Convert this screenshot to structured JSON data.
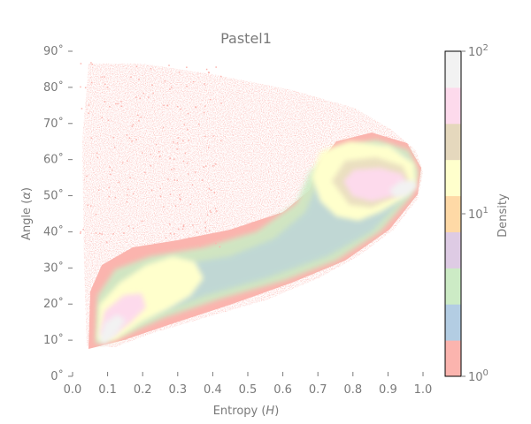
{
  "chart_data": {
    "type": "heatmap",
    "title": "Pastel1",
    "xlabel_main": "Entropy (",
    "xlabel_sym": "H",
    "xlabel_close": ")",
    "ylabel_main": "Angle (",
    "ylabel_sym": "α",
    "ylabel_close": ")",
    "xlim": [
      0.0,
      1.0
    ],
    "ylim": [
      0,
      90
    ],
    "x_ticks": [
      0.0,
      0.1,
      0.2,
      0.3,
      0.4,
      0.5,
      0.6,
      0.7,
      0.8,
      0.9,
      1.0
    ],
    "x_tick_labels": [
      "0.0",
      "0.1",
      "0.2",
      "0.3",
      "0.4",
      "0.5",
      "0.6",
      "0.7",
      "0.8",
      "0.9",
      "1.0"
    ],
    "y_ticks": [
      0,
      10,
      20,
      30,
      40,
      50,
      60,
      70,
      80,
      90
    ],
    "y_tick_labels": [
      "0˚",
      "10˚",
      "20˚",
      "30˚",
      "40˚",
      "50˚",
      "60˚",
      "70˚",
      "80˚",
      "90˚"
    ],
    "grid": false,
    "colormap": "Pastel1",
    "colorbar": {
      "label": "Density",
      "scale": "log",
      "range": [
        1,
        100
      ],
      "tick_base": "10",
      "tick_exponents": [
        "0",
        "1",
        "2"
      ],
      "colors": [
        "#fbb4ae",
        "#b3cde3",
        "#ccebc5",
        "#decbe4",
        "#fed9a6",
        "#ffffcc",
        "#e5d8bd",
        "#fddaec",
        "#f2f2f2"
      ]
    },
    "density_regions": [
      {
        "level": "low",
        "color": "#fbb4ae",
        "description_points": [
          [
            0.05,
            8
          ],
          [
            0.15,
            85
          ],
          [
            0.55,
            80
          ],
          [
            0.98,
            55
          ],
          [
            0.3,
            10
          ]
        ]
      },
      {
        "level": "mid",
        "color": "#ffffcc",
        "points": [
          [
            0.75,
            57
          ],
          [
            0.85,
            47
          ],
          [
            0.22,
            30
          ],
          [
            0.12,
            18
          ]
        ]
      },
      {
        "level": "high",
        "color": "#fddaec",
        "points": [
          [
            0.85,
            52
          ],
          [
            0.13,
            20
          ]
        ]
      },
      {
        "level": "max",
        "color": "#f2f2f2",
        "points": [
          [
            0.94,
            53
          ],
          [
            0.11,
            12
          ]
        ]
      }
    ]
  }
}
